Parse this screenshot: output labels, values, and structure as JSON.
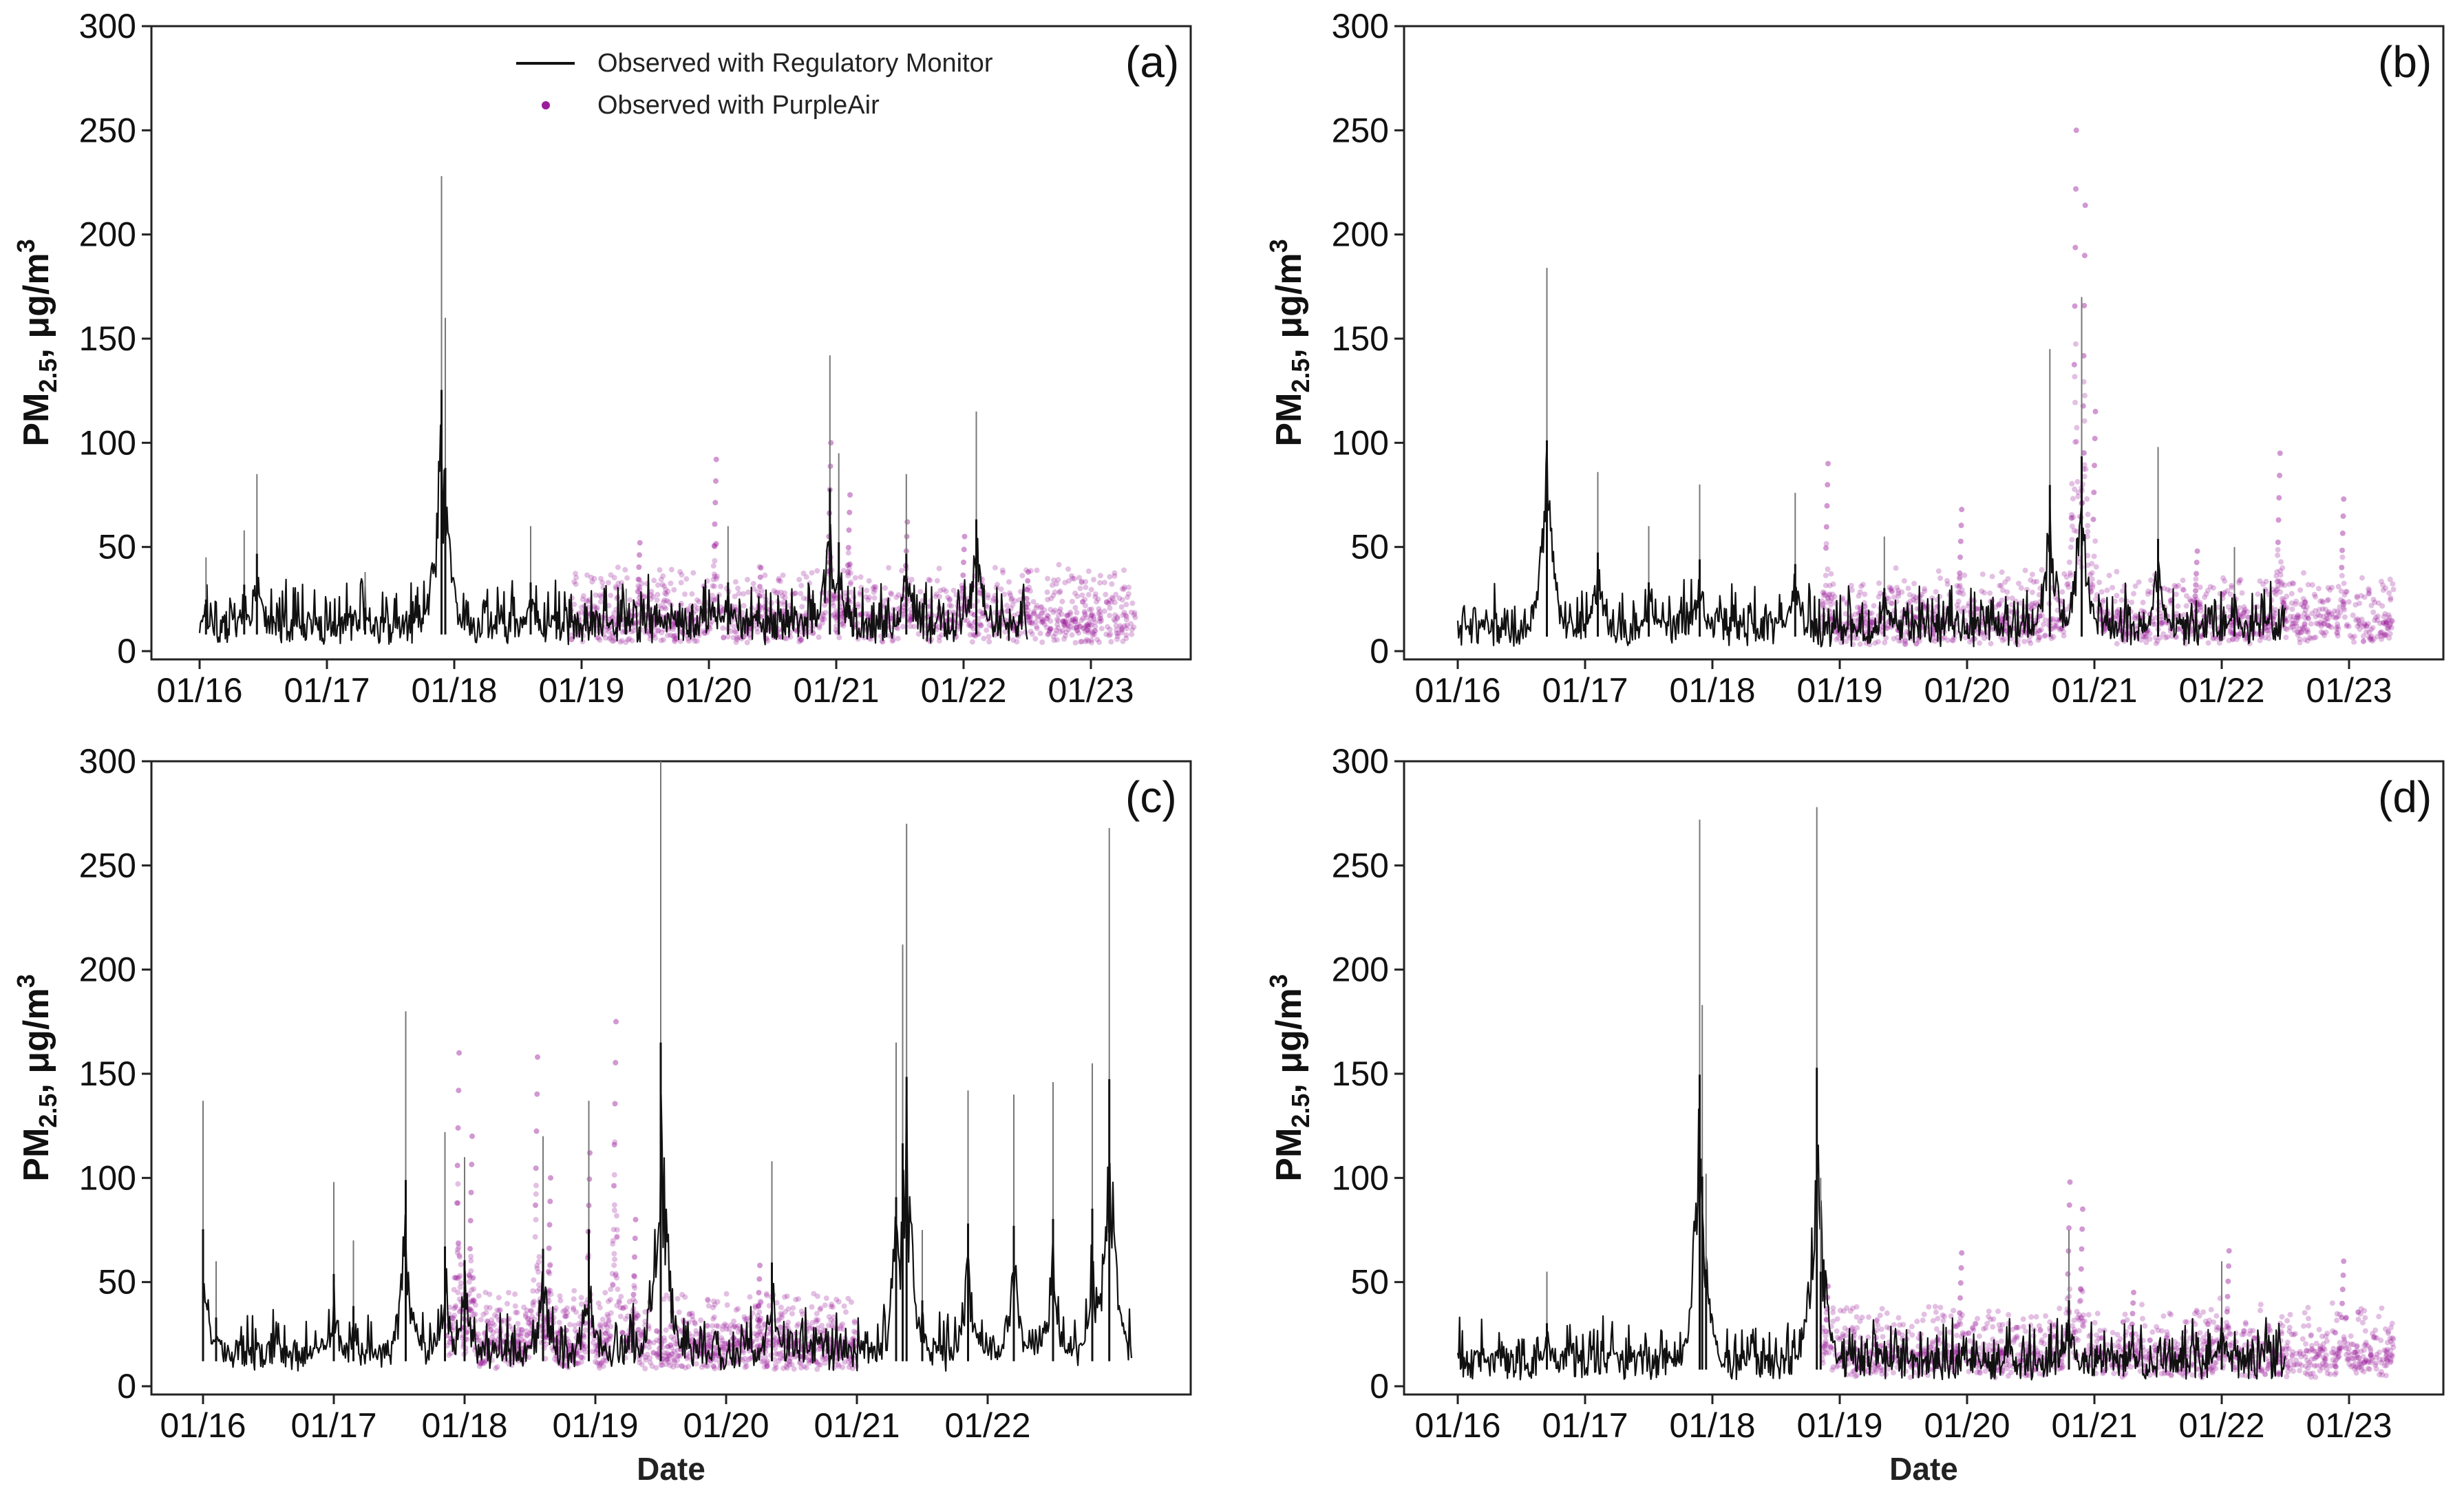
{
  "figure": {
    "description_units": "PM2.5 concentrations over time, four panels"
  },
  "legend": {
    "regulatory": "Observed with Regulatory Monitor",
    "purpleair": "Observed with PurpleAir"
  },
  "colors": {
    "regulatory": "#111111",
    "purpleair": "#9b1b9b",
    "axis": "#222222"
  },
  "axes": {
    "ylabel_main": "PM",
    "ylabel_sub": "2.5",
    "ylabel_rest": ", μg/m",
    "ylabel_sup": "3",
    "xlabel": "Date"
  },
  "chart_data": [
    {
      "type": "line",
      "panel": "(a)",
      "title": "",
      "xlabel": "",
      "ylabel": "PM2.5, μg/m3",
      "ylim": [
        0,
        300
      ],
      "yticks": [
        0,
        50,
        100,
        150,
        200,
        250,
        300
      ],
      "xlim": [
        0,
        7.6
      ],
      "categories": [
        "01/16",
        "01/17",
        "01/18",
        "01/19",
        "01/20",
        "01/21",
        "01/22",
        "01/23"
      ],
      "regulatory_range": [
        0,
        6.5
      ],
      "purpleair_range": [
        2.9,
        7.35
      ],
      "baseline": 8,
      "series": [
        {
          "name": "Observed with Regulatory Monitor",
          "peaks": [
            [
              0.05,
              45
            ],
            [
              0.35,
              58
            ],
            [
              0.45,
              85
            ],
            [
              1.3,
              38
            ],
            [
              1.9,
              228
            ],
            [
              1.93,
              160
            ],
            [
              2.6,
              60
            ],
            [
              3.35,
              30
            ],
            [
              4.15,
              60
            ],
            [
              4.95,
              142
            ],
            [
              5.02,
              95
            ],
            [
              5.55,
              85
            ],
            [
              6.1,
              115
            ]
          ]
        },
        {
          "name": "Observed with PurpleAir",
          "peaks": [
            [
              3.45,
              52
            ],
            [
              4.05,
              92
            ],
            [
              4.4,
              40
            ],
            [
              4.95,
              100
            ],
            [
              5.1,
              75
            ],
            [
              5.55,
              62
            ],
            [
              6.0,
              55
            ],
            [
              6.5,
              38
            ]
          ]
        }
      ]
    },
    {
      "type": "line",
      "panel": "(b)",
      "title": "",
      "xlabel": "",
      "ylabel": "PM2.5, μg/m3",
      "ylim": [
        0,
        300
      ],
      "yticks": [
        0,
        50,
        100,
        150,
        200,
        250,
        300
      ],
      "xlim": [
        0,
        7.6
      ],
      "categories": [
        "01/16",
        "01/17",
        "01/18",
        "01/19",
        "01/20",
        "01/21",
        "01/22",
        "01/23"
      ],
      "regulatory_range": [
        0,
        6.5
      ],
      "purpleair_range": [
        2.85,
        7.35
      ],
      "baseline": 7,
      "series": [
        {
          "name": "Observed with Regulatory Monitor",
          "peaks": [
            [
              0.7,
              184
            ],
            [
              1.1,
              86
            ],
            [
              1.5,
              60
            ],
            [
              1.9,
              80
            ],
            [
              2.65,
              76
            ],
            [
              3.35,
              55
            ],
            [
              4.65,
              145
            ],
            [
              4.9,
              170
            ],
            [
              5.5,
              98
            ],
            [
              6.1,
              50
            ]
          ]
        },
        {
          "name": "Observed with PurpleAir",
          "peaks": [
            [
              2.9,
              90
            ],
            [
              3.95,
              68
            ],
            [
              4.85,
              250
            ],
            [
              4.92,
              214
            ],
            [
              5.0,
              115
            ],
            [
              5.8,
              48
            ],
            [
              6.45,
              95
            ],
            [
              6.95,
              73
            ]
          ]
        }
      ]
    },
    {
      "type": "line",
      "panel": "(c)",
      "title": "",
      "xlabel": "Date",
      "ylabel": "PM2.5, μg/m3",
      "ylim": [
        0,
        300
      ],
      "yticks": [
        0,
        50,
        100,
        150,
        200,
        250,
        300
      ],
      "xlim": [
        0,
        7.25
      ],
      "categories": [
        "01/16",
        "01/17",
        "01/18",
        "01/19",
        "01/20",
        "01/21",
        "01/22"
      ],
      "regulatory_range": [
        0,
        7.1
      ],
      "purpleair_range": [
        1.85,
        5.0
      ],
      "baseline": 12,
      "series": [
        {
          "name": "Observed with Regulatory Monitor",
          "peaks": [
            [
              0.0,
              137
            ],
            [
              0.1,
              60
            ],
            [
              1.0,
              98
            ],
            [
              1.15,
              70
            ],
            [
              1.55,
              180
            ],
            [
              1.85,
              122
            ],
            [
              2.0,
              110
            ],
            [
              2.6,
              120
            ],
            [
              2.95,
              137
            ],
            [
              3.5,
              300
            ],
            [
              4.35,
              108
            ],
            [
              5.3,
              165
            ],
            [
              5.35,
              212
            ],
            [
              5.38,
              270
            ],
            [
              5.5,
              75
            ],
            [
              5.85,
              142
            ],
            [
              6.2,
              140
            ],
            [
              6.5,
              146
            ],
            [
              6.8,
              155
            ],
            [
              6.93,
              268
            ]
          ]
        },
        {
          "name": "Observed with PurpleAir",
          "peaks": [
            [
              1.95,
              160
            ],
            [
              2.05,
              120
            ],
            [
              2.55,
              158
            ],
            [
              2.65,
              100
            ],
            [
              2.95,
              112
            ],
            [
              3.15,
              175
            ],
            [
              3.3,
              80
            ],
            [
              4.25,
              58
            ]
          ]
        }
      ]
    },
    {
      "type": "line",
      "panel": "(d)",
      "title": "",
      "xlabel": "Date",
      "ylabel": "PM2.5, μg/m3",
      "ylim": [
        0,
        300
      ],
      "yticks": [
        0,
        50,
        100,
        150,
        200,
        250,
        300
      ],
      "xlim": [
        0,
        7.6
      ],
      "categories": [
        "01/16",
        "01/17",
        "01/18",
        "01/19",
        "01/20",
        "01/21",
        "01/22",
        "01/23"
      ],
      "regulatory_range": [
        0,
        6.5
      ],
      "purpleair_range": [
        2.85,
        7.35
      ],
      "baseline": 8,
      "series": [
        {
          "name": "Observed with Regulatory Monitor",
          "peaks": [
            [
              0.7,
              55
            ],
            [
              1.9,
              272
            ],
            [
              1.92,
              183
            ],
            [
              1.95,
              102
            ],
            [
              2.82,
              278
            ],
            [
              2.85,
              100
            ],
            [
              4.8,
              75
            ],
            [
              6.0,
              60
            ]
          ]
        },
        {
          "name": "Observed with PurpleAir",
          "peaks": [
            [
              2.9,
              48
            ],
            [
              3.95,
              64
            ],
            [
              4.8,
              98
            ],
            [
              4.9,
              85
            ],
            [
              5.3,
              45
            ],
            [
              6.05,
              65
            ],
            [
              6.95,
              60
            ]
          ]
        }
      ]
    }
  ]
}
